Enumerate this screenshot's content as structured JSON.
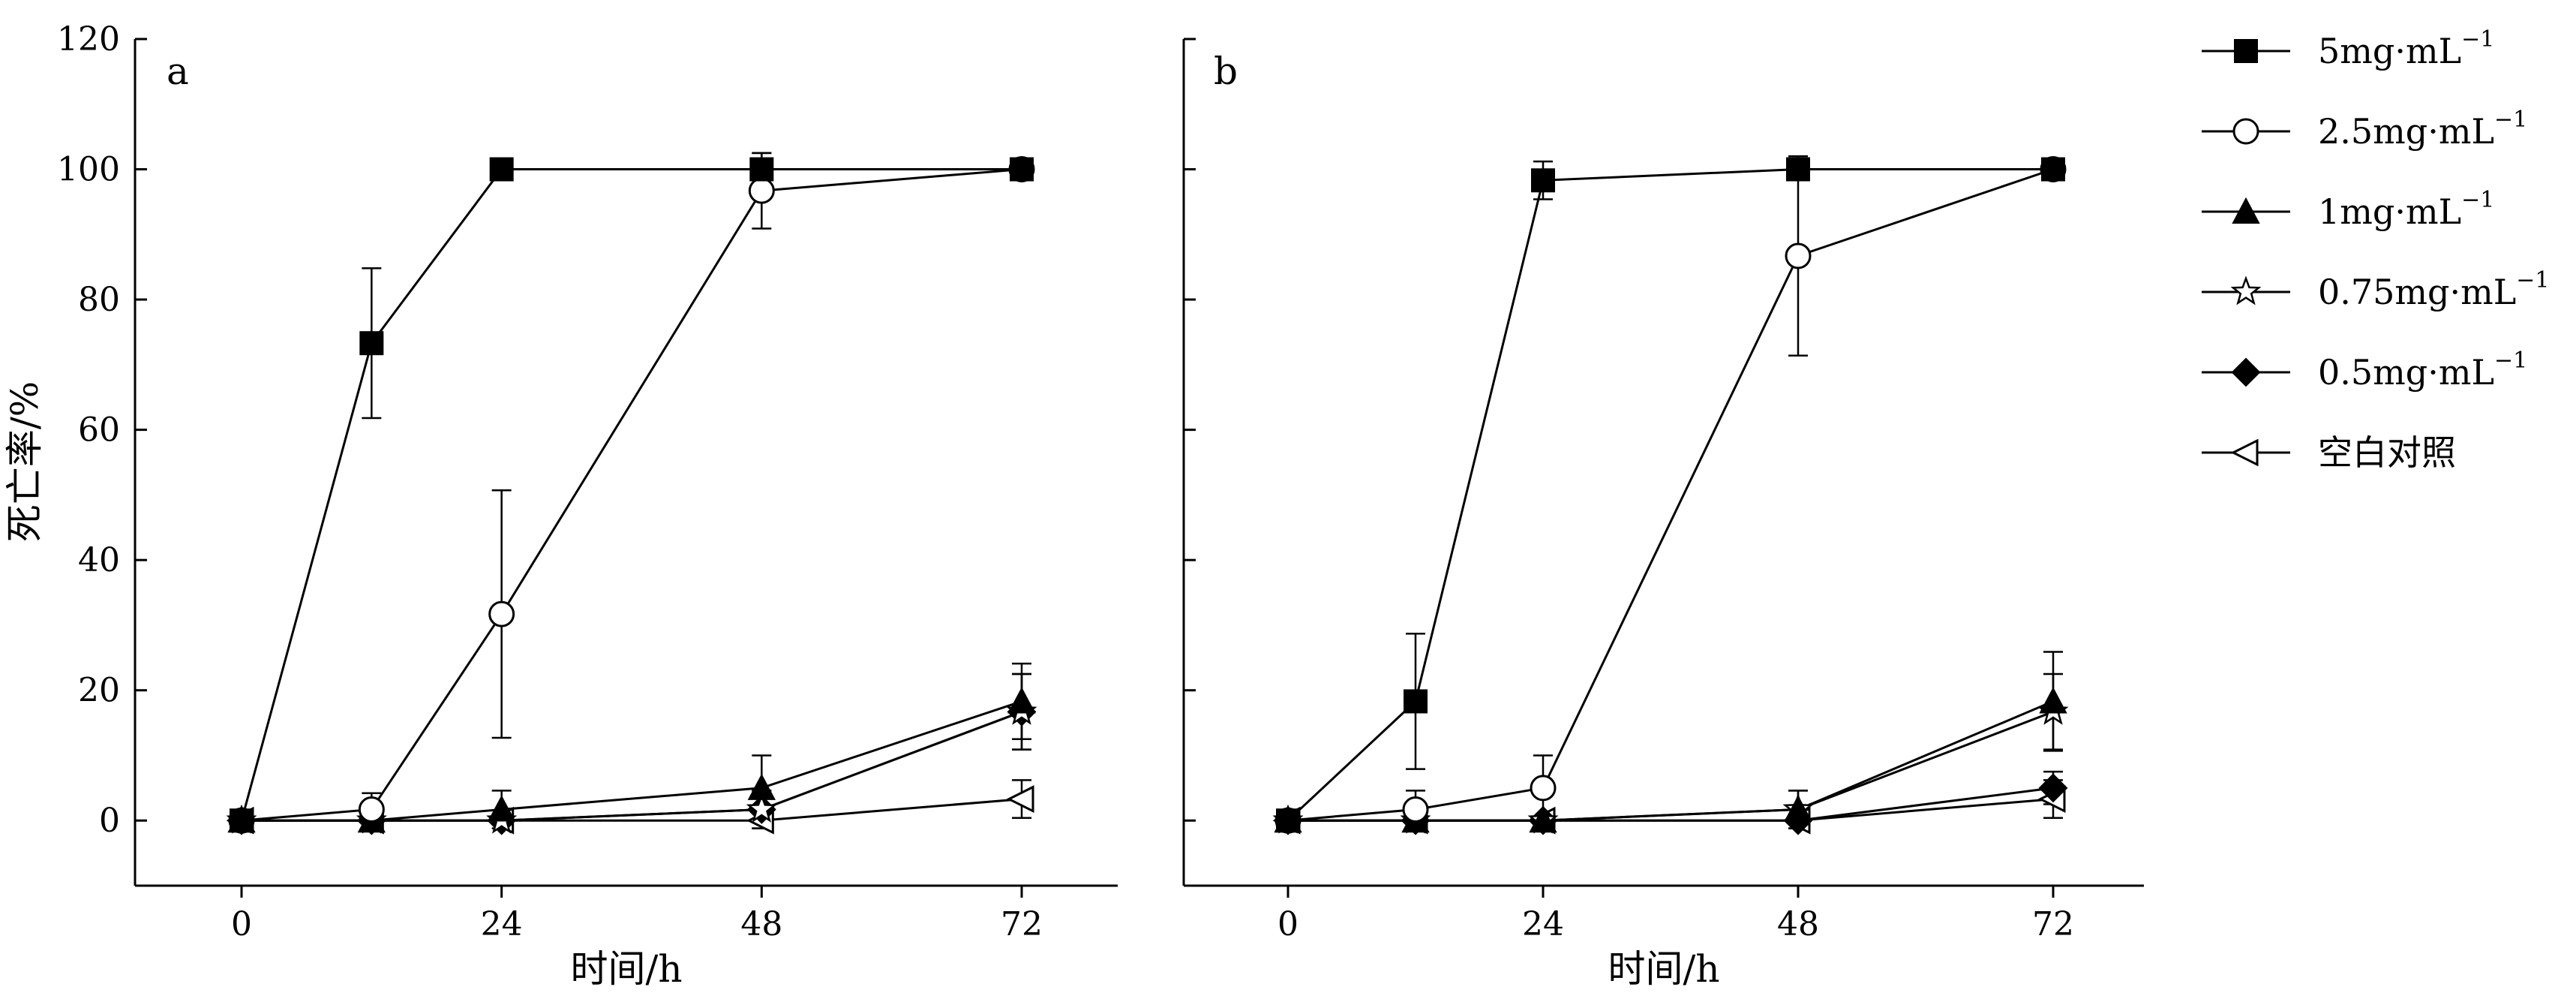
{
  "chart_data": [
    {
      "type": "line",
      "panel_label": "a",
      "xlabel": "时间/h",
      "ylabel": "死亡率/%",
      "x_ticks": [
        "0",
        "24",
        "48",
        "72"
      ],
      "y_ticks": [
        "0",
        "20",
        "40",
        "60",
        "80",
        "100",
        "120"
      ],
      "xlim": [
        -10,
        80
      ],
      "ylim": [
        -10,
        120
      ],
      "error_bars": true,
      "series": [
        {
          "name": "5mg·mL⁻¹",
          "marker": "filled-square",
          "x": [
            0,
            12,
            24,
            48,
            72
          ],
          "y": [
            0,
            73.3,
            100,
            100,
            100
          ],
          "err": [
            0,
            11.5,
            0,
            2.5,
            0
          ]
        },
        {
          "name": "2.5mg·mL⁻¹",
          "marker": "open-circle",
          "x": [
            0,
            12,
            24,
            48,
            72
          ],
          "y": [
            0,
            1.7,
            31.7,
            96.7,
            100
          ],
          "err": [
            0,
            2.5,
            19,
            5.8,
            0
          ]
        },
        {
          "name": "1mg·mL⁻¹",
          "marker": "filled-triangle",
          "x": [
            0,
            12,
            24,
            48,
            72
          ],
          "y": [
            0,
            0,
            1.7,
            5,
            18.3
          ],
          "err": [
            0,
            0,
            2.9,
            5,
            5.8
          ]
        },
        {
          "name": "0.75mg·mL⁻¹",
          "marker": "open-star",
          "x": [
            0,
            12,
            24,
            48,
            72
          ],
          "y": [
            0,
            0,
            0,
            1.7,
            16.7
          ],
          "err": [
            0,
            0,
            0,
            2.9,
            5.8
          ]
        },
        {
          "name": "0.5mg·mL⁻¹",
          "marker": "filled-diamond",
          "x": [
            0,
            12,
            24,
            48,
            72
          ],
          "y": [
            0,
            0,
            0,
            1.7,
            16.7
          ],
          "err": [
            0,
            0,
            0,
            2.9,
            5.8
          ]
        },
        {
          "name": "空白对照",
          "marker": "open-left-triangle",
          "x": [
            0,
            12,
            24,
            48,
            72
          ],
          "y": [
            0,
            0,
            0,
            0,
            3.3
          ],
          "err": [
            0,
            0,
            0,
            0,
            2.9
          ]
        }
      ]
    },
    {
      "type": "line",
      "panel_label": "b",
      "xlabel": "时间/h",
      "ylabel": "",
      "x_ticks": [
        "0",
        "24",
        "48",
        "72"
      ],
      "y_ticks": [],
      "xlim": [
        -10,
        80
      ],
      "ylim": [
        -10,
        120
      ],
      "error_bars": true,
      "series": [
        {
          "name": "5mg·mL⁻¹",
          "marker": "filled-square",
          "x": [
            0,
            12,
            24,
            48,
            72
          ],
          "y": [
            0,
            18.3,
            98.3,
            100,
            100
          ],
          "err": [
            0,
            10.4,
            2.9,
            0,
            0
          ]
        },
        {
          "name": "2.5mg·mL⁻¹",
          "marker": "open-circle",
          "x": [
            0,
            12,
            24,
            48,
            72
          ],
          "y": [
            0,
            1.7,
            5,
            86.7,
            100
          ],
          "err": [
            0,
            2.9,
            5,
            15.3,
            0
          ]
        },
        {
          "name": "1mg·mL⁻¹",
          "marker": "filled-triangle",
          "x": [
            0,
            12,
            24,
            48,
            72
          ],
          "y": [
            0,
            0,
            0,
            1.7,
            18.3
          ],
          "err": [
            0,
            0,
            0,
            2.9,
            7.6
          ]
        },
        {
          "name": "0.75mg·mL⁻¹",
          "marker": "open-star",
          "x": [
            0,
            12,
            24,
            48,
            72
          ],
          "y": [
            0,
            0,
            0,
            1.7,
            16.7
          ],
          "err": [
            0,
            0,
            0,
            2.9,
            5.8
          ]
        },
        {
          "name": "0.5mg·mL⁻¹",
          "marker": "filled-diamond",
          "x": [
            0,
            12,
            24,
            48,
            72
          ],
          "y": [
            0,
            0,
            0,
            0,
            5
          ],
          "err": [
            0,
            0,
            0,
            0,
            2.5
          ]
        },
        {
          "name": "空白对照",
          "marker": "open-left-triangle",
          "x": [
            0,
            12,
            24,
            48,
            72
          ],
          "y": [
            0,
            0,
            0,
            0,
            3.3
          ],
          "err": [
            0,
            0,
            0,
            0,
            2.9
          ]
        }
      ]
    }
  ],
  "legend": {
    "placement": "right",
    "items": [
      {
        "base": "5mg·mL",
        "sup": "−1",
        "marker": "filled-square"
      },
      {
        "base": "2.5mg·mL",
        "sup": "−1",
        "marker": "open-circle"
      },
      {
        "base": "1mg·mL",
        "sup": "−1",
        "marker": "filled-triangle"
      },
      {
        "base": "0.75mg·mL",
        "sup": "−1",
        "marker": "open-star"
      },
      {
        "base": "0.5mg·mL",
        "sup": "−1",
        "marker": "filled-diamond"
      },
      {
        "base": "空白对照",
        "sup": "",
        "marker": "open-left-triangle"
      }
    ]
  }
}
